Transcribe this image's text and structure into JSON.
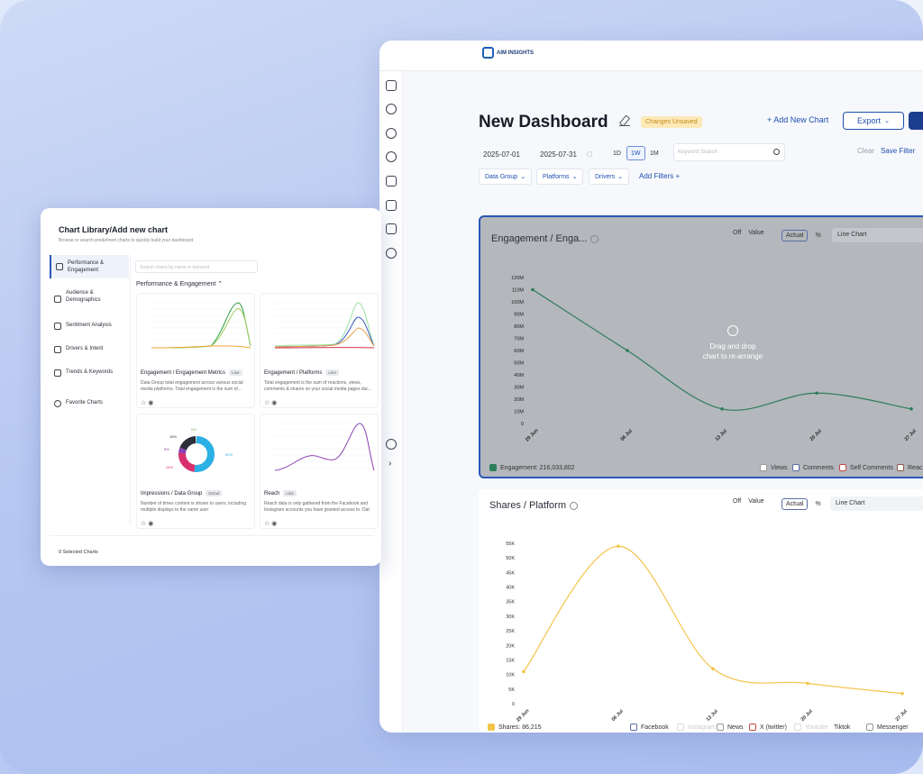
{
  "dashboard": {
    "logo_text": "AIM INSIGHTS",
    "title": "New Dashboard",
    "unsaved_badge": "Changes Unsaved",
    "add_chart": "+ Add New Chart",
    "export": "Export",
    "date_from": "2025-07-01",
    "date_to": "2025-07-31",
    "ranges": [
      "1D",
      "1W",
      "1M"
    ],
    "active_range": "1W",
    "keyword_placeholder": "Keyword Search",
    "clear": "Clear",
    "save_filter": "Save Filter",
    "filters": [
      "Data Group",
      "Platforms",
      "Drivers"
    ],
    "add_filters": "Add Filters",
    "rail_icons": [
      "home-icon",
      "refresh-icon",
      "globe-icon",
      "target-icon",
      "search-doc-icon",
      "network-icon",
      "clipboard-icon",
      "settings-icon",
      "logout-icon",
      "chevron-right-icon"
    ]
  },
  "engagement_chart": {
    "title": "Engagement / Enga...",
    "toggle_off": "Off",
    "toggle_value": "Value",
    "toggle_actual": "Actual",
    "toggle_pct": "%",
    "type": "Line Chart",
    "drag_line1": "Drag and drop",
    "drag_line2": "chart to re-arrange",
    "series_label": "Engagement: 216,033,802",
    "legend": [
      "Views",
      "Comments",
      "Self Comments",
      "Reac"
    ],
    "line_color": "#2e7d5b"
  },
  "shares_chart": {
    "title": "Shares / Platform",
    "toggle_off": "Off",
    "toggle_value": "Value",
    "toggle_actual": "Actual",
    "toggle_pct": "%",
    "type": "Line Chart",
    "series_label": "Shares: 86,215",
    "legend": [
      "Facebook",
      "Instagram",
      "News",
      "X (twitter)",
      "Youtube",
      "Tiktok",
      "Messenger"
    ],
    "line_color": "#f4c44a"
  },
  "chart_data": [
    {
      "type": "line",
      "title": "Engagement / Enga...",
      "x": [
        "29 Jun",
        "06 Jul",
        "13 Jul",
        "20 Jul",
        "27 Jul"
      ],
      "yticks": [
        "120M",
        "110M",
        "100M",
        "90M",
        "80M",
        "70M",
        "60M",
        "50M",
        "40M",
        "30M",
        "20M",
        "10M",
        "0"
      ],
      "series": [
        {
          "name": "Engagement",
          "values": [
            110,
            60,
            12,
            25,
            12
          ]
        }
      ],
      "ylim": [
        0,
        120
      ]
    },
    {
      "type": "line",
      "title": "Shares / Platform",
      "x": [
        "29 Jun",
        "06 Jul",
        "13 Jul",
        "20 Jul",
        "27 Jul"
      ],
      "yticks": [
        "55K",
        "50K",
        "45K",
        "40K",
        "35K",
        "30K",
        "25K",
        "20K",
        "15K",
        "10K",
        "5K",
        "0"
      ],
      "series": [
        {
          "name": "Shares",
          "values": [
            11,
            54,
            12,
            7,
            3.5
          ]
        }
      ],
      "ylim": [
        0,
        55
      ]
    }
  ],
  "library": {
    "title": "Chart Library/Add new chart",
    "subtitle": "Browse or search predefined charts to quickly build your dashboard",
    "categories": [
      "Performance & Engagement",
      "Audience & Demographics",
      "Sentiment Analysis",
      "Drivers & Intent",
      "Trends & Keywords",
      "Favorite Charts"
    ],
    "search_placeholder": "Search charts by name or keyword",
    "section": "Performance & Engagement",
    "cards": [
      {
        "name": "Engagement / Engagement Metrics",
        "badge": "Line",
        "desc": "Data Group total engagement across various social media platforms. Total engagement is the sum of..."
      },
      {
        "name": "Engagement / Platforms",
        "badge": "Line",
        "desc": "Total engagement is the sum of reactions, views, comments & shares on your social media pages dur..."
      },
      {
        "name": "Impressions / Data Group",
        "badge": "Donut",
        "desc": "Number of times content is shown to users, including multiple displays to the same user"
      },
      {
        "name": "Reach",
        "badge": "Line",
        "desc": "Reach data is only gathered from the Facebook and Instagram accounts you have granted access to. Dat"
      }
    ],
    "donut_labels": [
      "0%",
      "18%",
      "5%",
      "24%",
      "52%"
    ],
    "footer": "0 Selected Charts"
  }
}
